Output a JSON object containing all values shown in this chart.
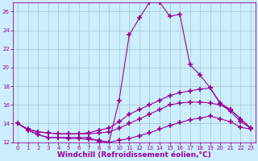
{
  "background_color": "#cceeff",
  "grid_color": "#aacccc",
  "line_color": "#990099",
  "marker": "+",
  "marker_size": 4,
  "marker_linewidth": 1.2,
  "line_width": 0.8,
  "xlabel": "Windchill (Refroidissement éolien,°C)",
  "xlabel_fontsize": 6.5,
  "xlim": [
    -0.5,
    23.5
  ],
  "ylim": [
    12,
    27
  ],
  "yticks": [
    12,
    14,
    16,
    18,
    20,
    22,
    24,
    26
  ],
  "xticks": [
    0,
    1,
    2,
    3,
    4,
    5,
    6,
    7,
    8,
    9,
    10,
    11,
    12,
    13,
    14,
    15,
    16,
    17,
    18,
    19,
    20,
    21,
    22,
    23
  ],
  "series": [
    {
      "x": [
        0,
        1,
        2,
        3,
        4,
        5,
        6,
        7,
        8,
        9,
        10,
        11,
        12,
        13,
        14,
        15,
        16,
        17,
        18,
        19,
        20,
        21,
        22,
        23
      ],
      "y": [
        14.0,
        13.3,
        12.8,
        12.5,
        12.5,
        12.5,
        12.5,
        12.5,
        12.1,
        12.0,
        16.5,
        23.5,
        25.3,
        27.0,
        27.0,
        25.5,
        25.7,
        20.3,
        19.2,
        17.8,
        16.1,
        15.3,
        14.2,
        13.5
      ]
    },
    {
      "x": [
        0,
        1,
        2,
        3,
        4,
        5,
        6,
        7,
        8,
        9,
        10,
        11,
        12,
        13,
        14,
        15,
        16,
        17,
        18,
        19,
        20,
        21,
        22,
        23
      ],
      "y": [
        14.0,
        13.4,
        13.1,
        13.0,
        12.9,
        12.9,
        12.9,
        13.0,
        13.3,
        13.5,
        14.2,
        15.0,
        15.5,
        16.0,
        16.5,
        17.0,
        17.3,
        17.5,
        17.7,
        17.8,
        16.2,
        15.5,
        14.5,
        13.5
      ]
    },
    {
      "x": [
        0,
        1,
        2,
        3,
        4,
        5,
        6,
        7,
        8,
        9,
        10,
        11,
        12,
        13,
        14,
        15,
        16,
        17,
        18,
        19,
        20,
        21,
        22,
        23
      ],
      "y": [
        14.0,
        13.4,
        13.1,
        13.0,
        12.9,
        12.9,
        12.9,
        12.9,
        13.0,
        13.1,
        13.5,
        14.0,
        14.5,
        15.0,
        15.5,
        16.0,
        16.2,
        16.3,
        16.3,
        16.2,
        16.0,
        15.5,
        14.5,
        13.5
      ]
    },
    {
      "x": [
        0,
        1,
        2,
        3,
        4,
        5,
        6,
        7,
        8,
        9,
        10,
        11,
        12,
        13,
        14,
        15,
        16,
        17,
        18,
        19,
        20,
        21,
        22,
        23
      ],
      "y": [
        14.0,
        13.3,
        12.8,
        12.5,
        12.5,
        12.4,
        12.4,
        12.3,
        12.2,
        12.0,
        12.2,
        12.4,
        12.7,
        13.0,
        13.4,
        13.8,
        14.1,
        14.4,
        14.6,
        14.8,
        14.5,
        14.2,
        13.6,
        13.4
      ]
    }
  ]
}
